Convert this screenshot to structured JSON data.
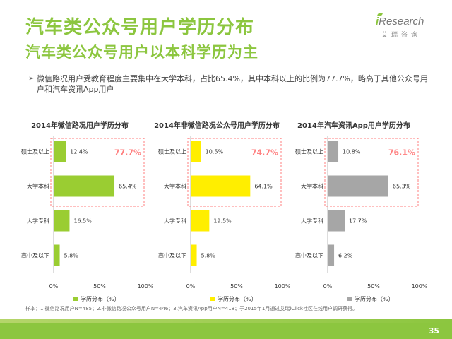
{
  "header": {
    "title": "汽车类公众号用户学历分布",
    "subtitle": "汽车类公众号用户以本科学历为主"
  },
  "logo": {
    "brand_i": "i",
    "brand_rest": "Research",
    "cn": "艾瑞咨询"
  },
  "bullet": {
    "marker": "➢",
    "text": "微信路况用户受教育程度主要集中在大学本科，占比65.4%，其中本科以上的比例为77.7%，略高于其他公众号用户和汽车资讯App用户"
  },
  "chart_data": [
    {
      "type": "bar",
      "orientation": "horizontal",
      "title": "2014年微信路况用户学历分布",
      "categories": [
        "硕士及以上",
        "大学本科",
        "大学专科",
        "高中及以下"
      ],
      "series": [
        {
          "name": "学历分布（%）",
          "values": [
            12.4,
            65.4,
            16.5,
            5.8
          ]
        }
      ],
      "value_labels": [
        "12.4%",
        "65.4%",
        "16.5%",
        "5.8%"
      ],
      "highlight": "77.7%",
      "xlim": [
        0,
        100
      ],
      "xticks": [
        "0%",
        "50%",
        "100%"
      ],
      "color": "#9acd32",
      "highlight_color": "#ff7f7f",
      "legend": "bottom"
    },
    {
      "type": "bar",
      "orientation": "horizontal",
      "title": "2014年非微信路况公众号用户学历分布",
      "categories": [
        "硕士及以上",
        "大学本科",
        "大学专科",
        "高中及以下"
      ],
      "series": [
        {
          "name": "学历分布（%）",
          "values": [
            10.5,
            64.1,
            19.5,
            5.8
          ]
        }
      ],
      "value_labels": [
        "10.5%",
        "64.1%",
        "19.5%",
        "5.8%"
      ],
      "highlight": "74.7%",
      "xlim": [
        0,
        100
      ],
      "xticks": [
        "0%",
        "50%",
        "100%"
      ],
      "color": "#ffee00",
      "highlight_color": "#ff7f7f",
      "legend": "bottom"
    },
    {
      "type": "bar",
      "orientation": "horizontal",
      "title": "2014年汽车资讯App用户学历分布",
      "categories": [
        "硕士及以上",
        "大学本科",
        "大学专科",
        "高中及以下"
      ],
      "series": [
        {
          "name": "学历分布（%）",
          "values": [
            10.8,
            65.3,
            17.7,
            6.2
          ]
        }
      ],
      "value_labels": [
        "10.8%",
        "65.3%",
        "17.7%",
        "6.2%"
      ],
      "highlight": "76.1%",
      "xlim": [
        0,
        100
      ],
      "xticks": [
        "0%",
        "50%",
        "100%"
      ],
      "color": "#a6a6a6",
      "highlight_color": "#ff7f7f",
      "legend": "bottom"
    }
  ],
  "footnote": "样本：1.微信路况用户N=485；2.非微信路况公众号用户N=446；3.汽车资讯App用户N=418；于2015年1月通过艾瑞iClick社区在线用户调研获得。",
  "footer": {
    "page": "35"
  }
}
